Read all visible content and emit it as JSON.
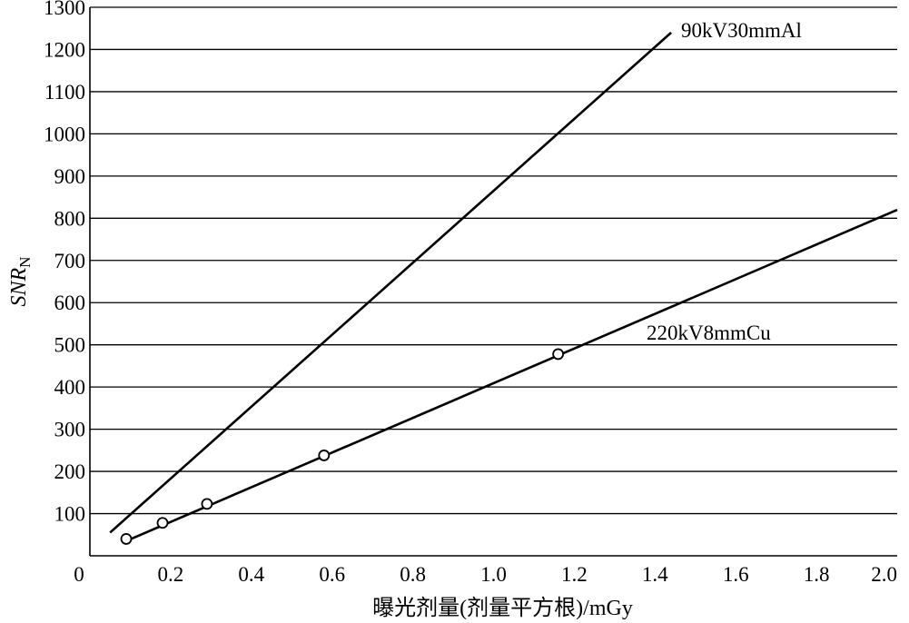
{
  "chart_data": {
    "type": "line",
    "title": "",
    "xlabel": "曝光剂量(剂量平方根)/mGy",
    "ylabel": {
      "main": "SNR",
      "sub": "N"
    },
    "xlim": [
      0,
      2.0
    ],
    "ylim": [
      0,
      1300
    ],
    "xticks": [
      0,
      0.2,
      0.4,
      0.6,
      0.8,
      1.0,
      1.2,
      1.4,
      1.6,
      1.8,
      2.0
    ],
    "xtick_labels": [
      "0",
      "0.2",
      "0.4",
      "0.6",
      "0.8",
      "1.0",
      "1.2",
      "1.4",
      "1.6",
      "1.8",
      "2.0"
    ],
    "yticks": [
      100,
      200,
      300,
      400,
      500,
      600,
      700,
      800,
      900,
      1000,
      1100,
      1200,
      1300
    ],
    "ytick_labels": [
      "100",
      "200",
      "300",
      "400",
      "500",
      "600",
      "700",
      "800",
      "900",
      "1000",
      "1100",
      "1200",
      "1300"
    ],
    "grid": {
      "horizontal": true,
      "vertical": false
    },
    "series": [
      {
        "name": "90kV30mmAl",
        "line": {
          "x": [
            0.05,
            1.44
          ],
          "y": [
            55,
            1240
          ]
        },
        "markers": {
          "x": [],
          "y": []
        }
      },
      {
        "name": "220kV8mmCu",
        "line": {
          "x": [
            0.09,
            2.0
          ],
          "y": [
            35,
            820
          ]
        },
        "markers": {
          "x": [
            0.09,
            0.18,
            0.29,
            0.58,
            1.16
          ],
          "y": [
            40,
            78,
            123,
            238,
            478
          ]
        }
      }
    ],
    "colors": {
      "line": "#000000",
      "grid": "#000000",
      "marker_fill": "#ffffff"
    }
  }
}
